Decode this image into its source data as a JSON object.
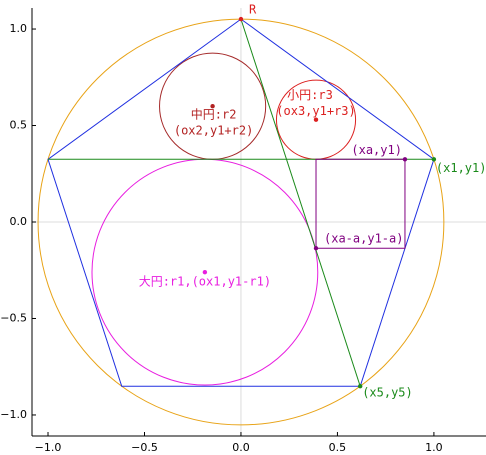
{
  "chart_data": {
    "type": "geometry",
    "xlim": [
      -1.083,
      1.27
    ],
    "ylim": [
      -1.109,
      1.109
    ],
    "xticks": [
      {
        "value": -1,
        "label": "−1.0"
      },
      {
        "value": -0.5,
        "label": "−0.5"
      },
      {
        "value": 0,
        "label": "0.0"
      },
      {
        "value": 0.5,
        "label": "0.5"
      },
      {
        "value": 1,
        "label": "1.0"
      }
    ],
    "yticks": [
      {
        "value": -1,
        "label": "−1.0"
      },
      {
        "value": -0.5,
        "label": "−0.5"
      },
      {
        "value": 0,
        "label": "0.0"
      },
      {
        "value": 0.5,
        "label": "0.5"
      },
      {
        "value": 1,
        "label": "1.0"
      }
    ],
    "zero_lines": true,
    "circles": [
      {
        "cx": 0,
        "cy": 0,
        "r": 1.0515,
        "color": "#e8a317"
      },
      {
        "cx": -0.187,
        "cy": -0.26,
        "r": 0.585,
        "color": "#e81ee0"
      },
      {
        "cx": -0.147,
        "cy": 0.6,
        "r": 0.275,
        "color": "#a52a2a"
      },
      {
        "cx": 0.389,
        "cy": 0.53,
        "r": 0.205,
        "color": "#dc2020"
      }
    ],
    "lines": [
      {
        "x": [
          0,
          1.0,
          0.618,
          -0.618,
          -1.0,
          0
        ],
        "y": [
          1.0515,
          0.325,
          -0.851,
          -0.851,
          0.325,
          1.0515
        ],
        "color": "#2030e0"
      },
      {
        "x": [
          -1.0,
          1.0
        ],
        "y": [
          0.325,
          0.325
        ],
        "color": "#1a8a1a"
      },
      {
        "x": [
          0,
          0.618
        ],
        "y": [
          1.0515,
          -0.851
        ],
        "color": "#1a8a1a"
      },
      {
        "x": [
          0.389,
          0.85,
          0.85,
          0.389,
          0.389
        ],
        "y": [
          -0.136,
          -0.136,
          0.325,
          0.325,
          -0.136
        ],
        "color": "#800080"
      }
    ],
    "points": [
      {
        "x": 0,
        "y": 1.0515,
        "labels": [
          "R"
        ],
        "color": "#dc2020"
      },
      {
        "x": -0.147,
        "y": 0.6,
        "labels": [
          "中円:r2",
          "(ox2,y1+r2)"
        ],
        "color": "#b22222"
      },
      {
        "x": 0.389,
        "y": 0.53,
        "labels": [
          "小円:r3",
          "(ox3,y1+r3)"
        ],
        "color": "#dc2020"
      },
      {
        "x": 0.85,
        "y": 0.325,
        "labels": [
          "(xa,y1)"
        ],
        "color": "#800080"
      },
      {
        "x": 1.0,
        "y": 0.325,
        "labels": [
          "(x1,y1)"
        ],
        "color": "#1a8a1a"
      },
      {
        "x": 0.389,
        "y": -0.136,
        "labels": [
          "(xa-a,y1-a)"
        ],
        "color": "#800080"
      },
      {
        "x": -0.187,
        "y": -0.26,
        "labels": [
          "大円:r1,(ox1,y1-r1)"
        ],
        "color": "#e81ee0"
      },
      {
        "x": 0.618,
        "y": -0.851,
        "labels": [
          "(x5,y5)"
        ],
        "color": "#1a8a1a"
      }
    ]
  }
}
